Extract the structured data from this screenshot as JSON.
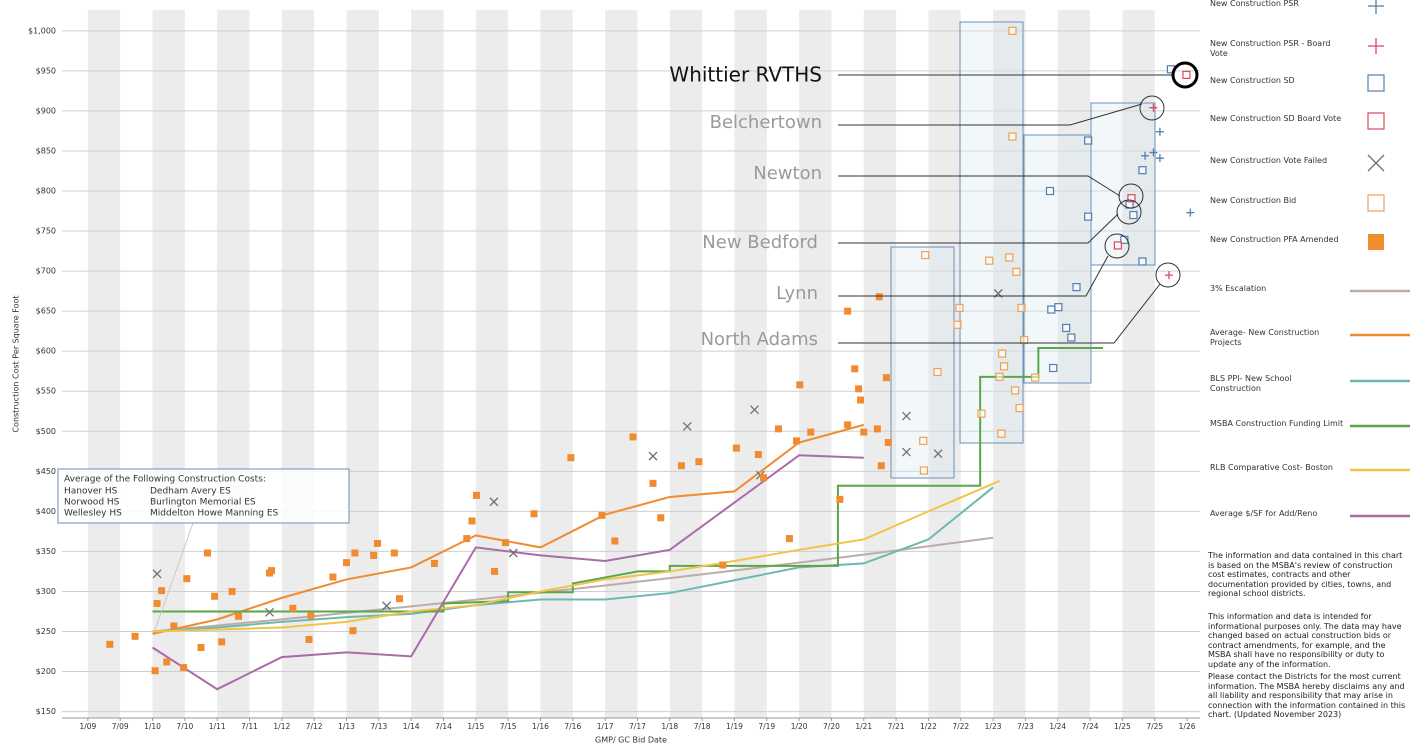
{
  "chart_data": {
    "type": "scatter",
    "x_label": "GMP/ GC Bid Date",
    "y_label": "Construction Cost Per Square Foot",
    "xlim": [
      2008.6,
      2026.2
    ],
    "ylim": [
      142,
      1026
    ],
    "grid": true,
    "stripes": true,
    "xticks": [
      {
        "value": 2009,
        "label": "1/09"
      },
      {
        "value": 2009.5,
        "label": "7/09"
      },
      {
        "value": 2010,
        "label": "1/10"
      },
      {
        "value": 2010.5,
        "label": "7/10"
      },
      {
        "value": 2011,
        "label": "1/11"
      },
      {
        "value": 2011.5,
        "label": "7/11"
      },
      {
        "value": 2012,
        "label": "1/12"
      },
      {
        "value": 2012.5,
        "label": "7/12"
      },
      {
        "value": 2013,
        "label": "1/13"
      },
      {
        "value": 2013.5,
        "label": "7/13"
      },
      {
        "value": 2014,
        "label": "1/14"
      },
      {
        "value": 2014.5,
        "label": "7/14"
      },
      {
        "value": 2015,
        "label": "1/15"
      },
      {
        "value": 2015.5,
        "label": "7/15"
      },
      {
        "value": 2016,
        "label": "1/16"
      },
      {
        "value": 2016.5,
        "label": "7/16"
      },
      {
        "value": 2017,
        "label": "1/17"
      },
      {
        "value": 2017.5,
        "label": "7/17"
      },
      {
        "value": 2018,
        "label": "1/18"
      },
      {
        "value": 2018.5,
        "label": "7/18"
      },
      {
        "value": 2019,
        "label": "1/19"
      },
      {
        "value": 2019.5,
        "label": "7/19"
      },
      {
        "value": 2020,
        "label": "1/20"
      },
      {
        "value": 2020.5,
        "label": "7/20"
      },
      {
        "value": 2021,
        "label": "1/21"
      },
      {
        "value": 2021.5,
        "label": "7/21"
      },
      {
        "value": 2022,
        "label": "1/22"
      },
      {
        "value": 2022.5,
        "label": "7/22"
      },
      {
        "value": 2023,
        "label": "1/23"
      },
      {
        "value": 2023.5,
        "label": "7/23"
      },
      {
        "value": 2024,
        "label": "1/24"
      },
      {
        "value": 2024.5,
        "label": "7/24"
      },
      {
        "value": 2025,
        "label": "1/25"
      },
      {
        "value": 2025.5,
        "label": "7/25"
      },
      {
        "value": 2026,
        "label": "1/26"
      }
    ],
    "yticks": [
      {
        "value": 150,
        "label": "$150"
      },
      {
        "value": 200,
        "label": "$200"
      },
      {
        "value": 250,
        "label": "$250"
      },
      {
        "value": 300,
        "label": "$300"
      },
      {
        "value": 350,
        "label": "$350"
      },
      {
        "value": 400,
        "label": "$400"
      },
      {
        "value": 450,
        "label": "$450"
      },
      {
        "value": 500,
        "label": "$500"
      },
      {
        "value": 550,
        "label": "$550"
      },
      {
        "value": 600,
        "label": "$600"
      },
      {
        "value": 650,
        "label": "$650"
      },
      {
        "value": 700,
        "label": "$700"
      },
      {
        "value": 750,
        "label": "$750"
      },
      {
        "value": 800,
        "label": "$800"
      },
      {
        "value": 850,
        "label": "$850"
      },
      {
        "value": 900,
        "label": "$900"
      },
      {
        "value": 950,
        "label": "$950"
      },
      {
        "value": 1000,
        "label": "$1,000"
      }
    ],
    "series": [
      {
        "name": "New Construction PSR",
        "color": "#4f7fb3",
        "style": "plus",
        "x": [
          2025.35,
          2025.48,
          2025.58,
          2025.58,
          2026.05
        ],
        "values": [
          844,
          848,
          874,
          841,
          773
        ]
      },
      {
        "name": "New Construction PSR - Board Vote",
        "color": "#e0455a",
        "style": "plus",
        "x": [
          2025.48,
          2025.72
        ],
        "values": [
          904,
          695
        ]
      },
      {
        "name": "New Construction SD",
        "color": "#4f7fb3",
        "style": "square",
        "x": [
          2025.75,
          2024.47,
          2023.88,
          2024.47,
          2024.29,
          2023.9,
          2024.01,
          2024.13,
          2024.21,
          2023.93,
          2025.03,
          2025.17,
          2025.11,
          2025.31,
          2025.31
        ],
        "values": [
          952,
          863,
          800,
          768,
          680,
          652,
          655,
          629,
          617,
          579,
          739,
          770,
          783,
          712,
          826
        ]
      },
      {
        "name": "New Construction SD Board Vote",
        "color": "#e0455a",
        "style": "square",
        "x": [
          2025.99,
          2025.14,
          2024.93
        ],
        "values": [
          945,
          791,
          732
        ]
      },
      {
        "name": "New Construction Vote Failed",
        "color": "#707070",
        "style": "x",
        "x": [
          2010.07,
          2011.81,
          2013.62,
          2015.28,
          2015.58,
          2017.74,
          2018.27,
          2019.31,
          2019.4,
          2021.66,
          2021.66,
          2022.15,
          2023.08
        ],
        "values": [
          322,
          274,
          282,
          412,
          348,
          469,
          506,
          527,
          445,
          519,
          474,
          472,
          672
        ]
      },
      {
        "name": "New Construction Bid",
        "color": "#f0a050",
        "style": "square",
        "x": [
          2023.3,
          2023.3,
          2021.95,
          2022.14,
          2022.48,
          2022.45,
          2022.94,
          2023.25,
          2023.36,
          2023.44,
          2023.48,
          2023.1,
          2023.14,
          2023.17,
          2022.82,
          2023.34,
          2023.41,
          2023.13,
          2021.92,
          2021.93,
          2023.65
        ],
        "values": [
          1000,
          868,
          720,
          574,
          654,
          633,
          713,
          717,
          699,
          654,
          614,
          568,
          597,
          581,
          522,
          551,
          529,
          497,
          488,
          451,
          567
        ]
      },
      {
        "name": "New Construction PFA Amended",
        "color": "#f08b2f",
        "style": "filled-square",
        "x": [
          2009.34,
          2009.73,
          2010.04,
          2010.07,
          2010.14,
          2010.22,
          2010.33,
          2010.48,
          2010.53,
          2010.75,
          2010.85,
          2010.96,
          2011.07,
          2011.23,
          2011.33,
          2011.81,
          2011.84,
          2012.17,
          2012.42,
          2012.45,
          2012.79,
          2013.0,
          2013.1,
          2013.13,
          2013.42,
          2013.48,
          2013.74,
          2013.82,
          2014.36,
          2014.86,
          2014.94,
          2015.01,
          2015.29,
          2015.46,
          2015.9,
          2016.47,
          2016.95,
          2017.15,
          2017.43,
          2017.74,
          2017.86,
          2018.18,
          2018.45,
          2018.82,
          2019.03,
          2019.37,
          2019.45,
          2019.68,
          2019.85,
          2019.96,
          2020.01,
          2020.18,
          2020.63,
          2020.75,
          2020.86,
          2020.92,
          2020.95,
          2021.0,
          2021.21,
          2021.35,
          2021.38,
          2020.75,
          2021.24,
          2021.27
        ],
        "values": [
          234,
          244,
          201,
          285,
          301,
          212,
          257,
          205,
          316,
          230,
          348,
          294,
          237,
          300,
          269,
          323,
          326,
          279,
          240,
          270,
          318,
          336,
          251,
          348,
          345,
          360,
          348,
          291,
          335,
          366,
          388,
          420,
          325,
          361,
          397,
          467,
          395,
          363,
          493,
          435,
          392,
          457,
          462,
          333,
          479,
          471,
          442,
          503,
          366,
          488,
          558,
          499,
          415,
          508,
          578,
          553,
          539,
          499,
          503,
          567,
          486,
          650,
          668,
          457
        ]
      },
      {
        "name": "3% Escalation",
        "color": "#bcaea6",
        "style": "line",
        "x": [
          2010,
          2011,
          2012,
          2013,
          2014,
          2015,
          2016,
          2017,
          2018,
          2019,
          2020,
          2021,
          2022,
          2023
        ],
        "values": [
          250,
          257.5,
          265.2,
          273.2,
          281.4,
          289.8,
          298.5,
          307.5,
          316.7,
          326.2,
          336,
          346,
          356.4,
          367.1
        ]
      },
      {
        "name": "Average- New Construction Projects",
        "color": "#f08b2f",
        "style": "line",
        "x": [
          2010,
          2011,
          2012,
          2013,
          2014,
          2015,
          2016,
          2017,
          2018,
          2019,
          2020,
          2021
        ],
        "values": [
          247,
          265,
          292,
          315,
          330,
          370,
          355,
          396,
          418,
          425,
          486,
          508
        ]
      },
      {
        "name": "BLS PPI- New School Construction",
        "color": "#6fb8b2",
        "style": "line",
        "x": [
          2010,
          2011,
          2012,
          2013,
          2014,
          2015,
          2016,
          2017,
          2018,
          2019,
          2020,
          2021,
          2022,
          2023
        ],
        "values": [
          250,
          255,
          262,
          268,
          272,
          283,
          290,
          290,
          298,
          314,
          330,
          335,
          365,
          430
        ]
      },
      {
        "name": "MSBA Construction Funding Limit",
        "color": "#5aa64a",
        "style": "line",
        "x": [
          2010,
          2014.5,
          2014.5,
          2015.5,
          2015.5,
          2016.5,
          2016.5,
          2017.5,
          2018,
          2018,
          2020.6,
          2020.6,
          2022.8,
          2022.8,
          2023.7,
          2023.7,
          2024.7
        ],
        "values": [
          275,
          275,
          285,
          288,
          299,
          299,
          310,
          325,
          325,
          332,
          332,
          432,
          432,
          568,
          568,
          604,
          604
        ]
      },
      {
        "name": "RLB Comparative Cost- Boston",
        "color": "#f2c445",
        "style": "line",
        "x": [
          2010,
          2012,
          2013,
          2014,
          2015,
          2016,
          2017,
          2018,
          2019,
          2020,
          2021,
          2022,
          2023.1
        ],
        "values": [
          250,
          255,
          262,
          275,
          283,
          300,
          315,
          325,
          338,
          352,
          365,
          400,
          438
        ]
      },
      {
        "name": "Average $/SF for Add/Reno",
        "color": "#a86ca8",
        "style": "line",
        "x": [
          2010,
          2011,
          2012,
          2013,
          2014,
          2015,
          2016,
          2017,
          2018,
          2020,
          2021
        ],
        "values": [
          230,
          178,
          218,
          224,
          219,
          355,
          345,
          338,
          352,
          470,
          467
        ]
      }
    ],
    "callouts": [
      "Whittier RVTHS",
      "Belchertown",
      "Newton",
      "New Bedford",
      "Lynn",
      "North Adams"
    ],
    "average_box": {
      "title": "Average of the Following Construction Costs:",
      "rows": [
        [
          "Hanover HS",
          "Dedham Avery ES"
        ],
        [
          "Norwood HS",
          "Burlington Memorial ES"
        ],
        [
          "Wellesley HS",
          "Middelton Howe Manning ES"
        ]
      ]
    },
    "notes": [
      "The information and data contained in this chart is based on the MSBA's review of construction cost estimates, contracts and other documentation provided by cities, towns, and regional school districts.",
      "This information and data is intended for informational purposes only. The data may have changed based on actual construction bids or contract amendments, for example, and the MSBA shall have no responsibility or duty to update any of the information.",
      "Please contact the Districts for the most current information. The MSBA hereby disclaims any and all liability and responsibility that may arise in connection with the information contained in this chart. (Updated November 2023)"
    ]
  }
}
